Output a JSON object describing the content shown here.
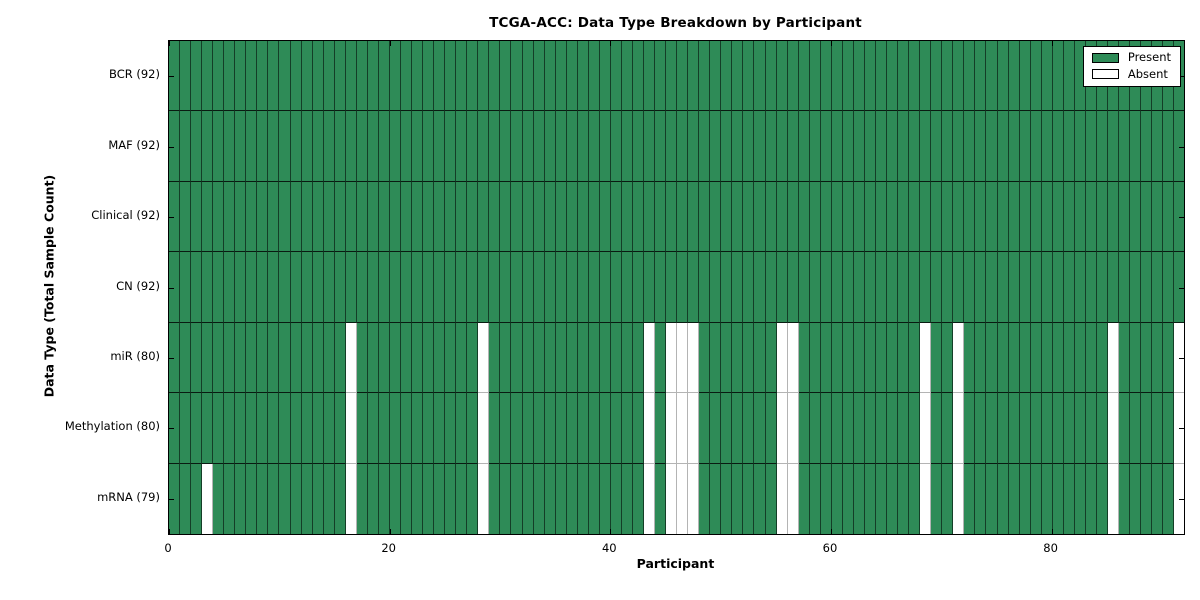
{
  "chart_data": {
    "type": "heatmap",
    "title": "TCGA-ACC: Data Type Breakdown by Participant",
    "xlabel": "Participant",
    "ylabel": "Data Type (Total Sample Count)",
    "n_participants": 92,
    "x_ticks": [
      0,
      20,
      40,
      60,
      80
    ],
    "grid": false,
    "legend_position": "upper right",
    "legend": [
      {
        "label": "Present",
        "color": "#2e8b57"
      },
      {
        "label": "Absent",
        "color": "#ffffff"
      }
    ],
    "colors": {
      "present": "#2e8b57",
      "absent": "#ffffff",
      "frame": "#000000"
    },
    "rows": [
      {
        "label": "BCR (92)",
        "data_type": "BCR",
        "total_present": 92,
        "absent_participants": []
      },
      {
        "label": "MAF (92)",
        "data_type": "MAF",
        "total_present": 92,
        "absent_participants": []
      },
      {
        "label": "Clinical (92)",
        "data_type": "Clinical",
        "total_present": 92,
        "absent_participants": []
      },
      {
        "label": "CN (92)",
        "data_type": "CN",
        "total_present": 92,
        "absent_participants": []
      },
      {
        "label": "miR (80)",
        "data_type": "miR",
        "total_present": 80,
        "absent_participants": [
          16,
          28,
          43,
          45,
          46,
          47,
          55,
          56,
          68,
          71,
          85,
          91
        ]
      },
      {
        "label": "Methylation (80)",
        "data_type": "Methylation",
        "total_present": 80,
        "absent_participants": [
          16,
          28,
          43,
          45,
          46,
          47,
          55,
          56,
          68,
          71,
          85,
          91
        ]
      },
      {
        "label": "mRNA (79)",
        "data_type": "mRNA",
        "total_present": 79,
        "absent_participants": [
          3,
          16,
          28,
          43,
          45,
          46,
          47,
          55,
          56,
          68,
          71,
          85,
          91
        ]
      }
    ]
  }
}
